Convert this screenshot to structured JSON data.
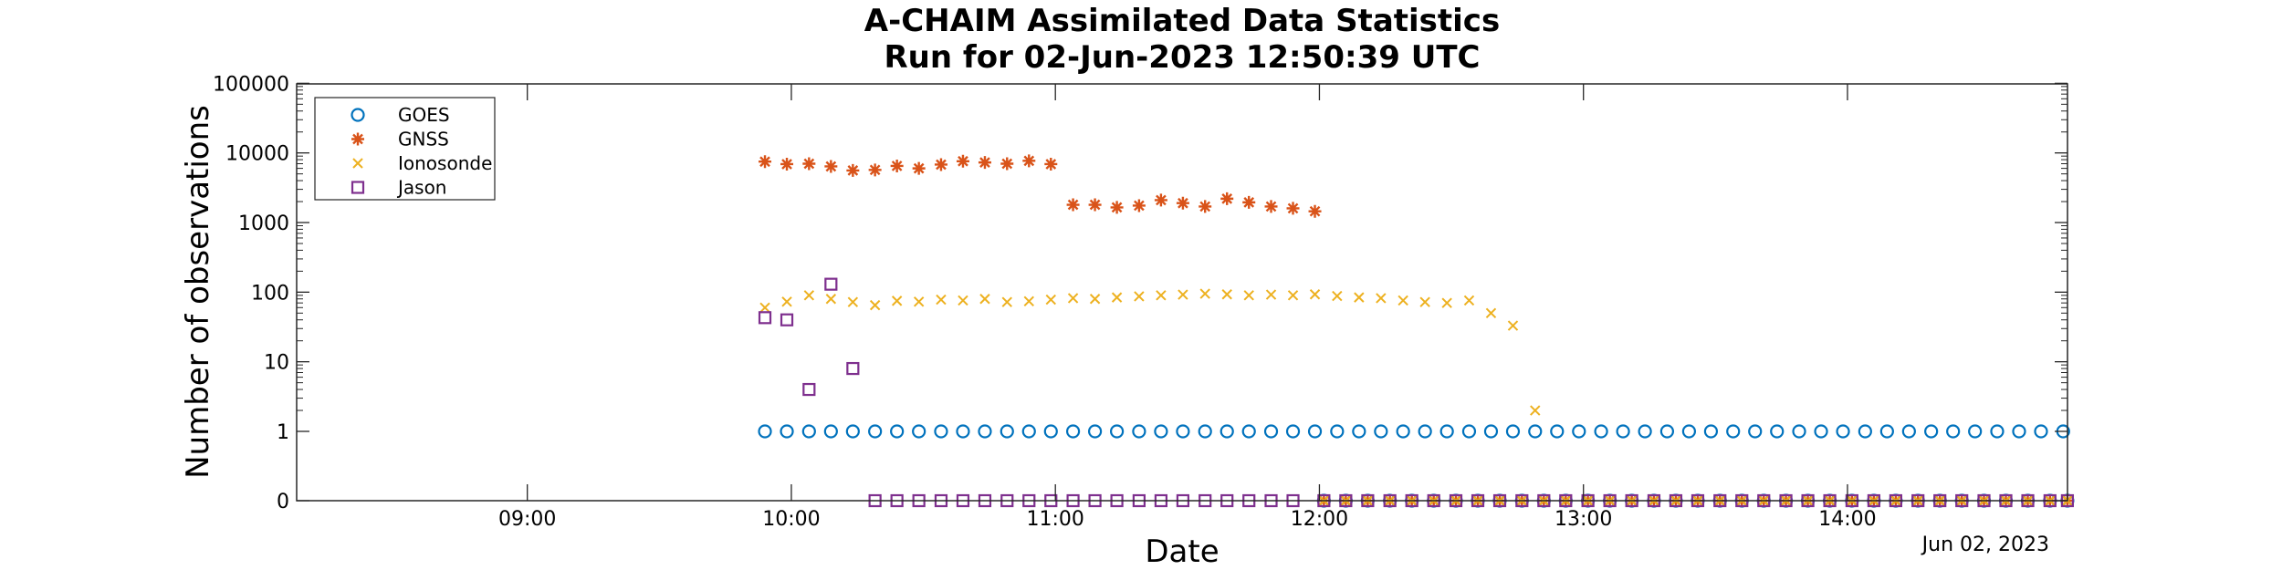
{
  "chart_data": {
    "type": "scatter",
    "title": "A-CHAIM Assimilated Data Statistics",
    "subtitle": "Run for 02-Jun-2023 12:50:39 UTC",
    "xlabel": "Date",
    "ylabel": "Number of observations",
    "date_annotation": "Jun 02, 2023",
    "y_scale": "log (0 shown at bottom)",
    "y_ticks": [
      "0",
      "1",
      "10",
      "100",
      "1000",
      "10000",
      "100000"
    ],
    "x_ticks": [
      "09:00",
      "10:00",
      "11:00",
      "12:00",
      "13:00",
      "14:00"
    ],
    "x_tick_hours": [
      9,
      10,
      11,
      12,
      13,
      14
    ],
    "xlim_hours": [
      8.1264,
      14.8333
    ],
    "grid": false,
    "legend_position": "top-left",
    "colors": {
      "GOES": "#0072BD",
      "GNSS": "#D95319",
      "Ionosonde": "#EDB120",
      "Jason": "#7E2F8E"
    },
    "series": [
      {
        "name": "GOES",
        "marker": "circle",
        "points": [
          [
            9.9,
            1
          ],
          [
            9.983,
            1
          ],
          [
            10.067,
            1
          ],
          [
            10.15,
            1
          ],
          [
            10.233,
            1
          ],
          [
            10.317,
            1
          ],
          [
            10.4,
            1
          ],
          [
            10.483,
            1
          ],
          [
            10.567,
            1
          ],
          [
            10.65,
            1
          ],
          [
            10.733,
            1
          ],
          [
            10.817,
            1
          ],
          [
            10.9,
            1
          ],
          [
            10.983,
            1
          ],
          [
            11.067,
            1
          ],
          [
            11.15,
            1
          ],
          [
            11.233,
            1
          ],
          [
            11.317,
            1
          ],
          [
            11.4,
            1
          ],
          [
            11.483,
            1
          ],
          [
            11.567,
            1
          ],
          [
            11.65,
            1
          ],
          [
            11.733,
            1
          ],
          [
            11.817,
            1
          ],
          [
            11.9,
            1
          ],
          [
            11.983,
            1
          ],
          [
            12.067,
            1
          ],
          [
            12.15,
            1
          ],
          [
            12.233,
            1
          ],
          [
            12.317,
            1
          ],
          [
            12.4,
            1
          ],
          [
            12.483,
            1
          ],
          [
            12.567,
            1
          ],
          [
            12.65,
            1
          ],
          [
            12.733,
            1
          ],
          [
            12.817,
            1
          ],
          [
            12.9,
            1
          ],
          [
            12.983,
            1
          ],
          [
            13.067,
            1
          ],
          [
            13.15,
            1
          ],
          [
            13.233,
            1
          ],
          [
            13.317,
            1
          ],
          [
            13.4,
            1
          ],
          [
            13.483,
            1
          ],
          [
            13.567,
            1
          ],
          [
            13.65,
            1
          ],
          [
            13.733,
            1
          ],
          [
            13.817,
            1
          ],
          [
            13.9,
            1
          ],
          [
            13.983,
            1
          ],
          [
            14.067,
            1
          ],
          [
            14.15,
            1
          ],
          [
            14.233,
            1
          ],
          [
            14.317,
            1
          ],
          [
            14.4,
            1
          ],
          [
            14.483,
            1
          ],
          [
            14.567,
            1
          ],
          [
            14.65,
            1
          ],
          [
            14.733,
            1
          ],
          [
            14.817,
            1
          ],
          [
            12.017,
            0
          ],
          [
            12.1,
            0
          ],
          [
            12.183,
            0
          ],
          [
            12.267,
            0
          ],
          [
            12.35,
            0
          ],
          [
            12.433,
            0
          ],
          [
            12.517,
            0
          ],
          [
            12.6,
            0
          ],
          [
            12.683,
            0
          ],
          [
            12.767,
            0
          ],
          [
            12.85,
            0
          ],
          [
            12.933,
            0
          ],
          [
            13.017,
            0
          ],
          [
            13.1,
            0
          ],
          [
            13.183,
            0
          ],
          [
            13.267,
            0
          ],
          [
            13.35,
            0
          ],
          [
            13.433,
            0
          ],
          [
            13.517,
            0
          ],
          [
            13.6,
            0
          ],
          [
            13.683,
            0
          ],
          [
            13.767,
            0
          ],
          [
            13.85,
            0
          ],
          [
            13.933,
            0
          ],
          [
            14.017,
            0
          ],
          [
            14.1,
            0
          ],
          [
            14.183,
            0
          ],
          [
            14.267,
            0
          ],
          [
            14.35,
            0
          ],
          [
            14.433,
            0
          ],
          [
            14.517,
            0
          ],
          [
            14.6,
            0
          ],
          [
            14.683,
            0
          ],
          [
            14.767,
            0
          ],
          [
            14.833,
            0
          ]
        ]
      },
      {
        "name": "GNSS",
        "marker": "star",
        "points": [
          [
            9.9,
            7500
          ],
          [
            9.983,
            6900
          ],
          [
            10.067,
            7000
          ],
          [
            10.15,
            6400
          ],
          [
            10.233,
            5600
          ],
          [
            10.317,
            5700
          ],
          [
            10.4,
            6500
          ],
          [
            10.483,
            6000
          ],
          [
            10.567,
            6800
          ],
          [
            10.65,
            7600
          ],
          [
            10.733,
            7300
          ],
          [
            10.817,
            7000
          ],
          [
            10.9,
            7700
          ],
          [
            10.983,
            6900
          ],
          [
            11.067,
            1800
          ],
          [
            11.15,
            1800
          ],
          [
            11.233,
            1650
          ],
          [
            11.317,
            1750
          ],
          [
            11.4,
            2100
          ],
          [
            11.483,
            1900
          ],
          [
            11.567,
            1700
          ],
          [
            11.65,
            2200
          ],
          [
            11.733,
            1950
          ],
          [
            11.817,
            1700
          ],
          [
            11.9,
            1600
          ],
          [
            11.983,
            1450
          ],
          [
            12.017,
            0
          ],
          [
            12.1,
            0
          ],
          [
            12.183,
            0
          ],
          [
            12.267,
            0
          ],
          [
            12.35,
            0
          ],
          [
            12.433,
            0
          ],
          [
            12.517,
            0
          ],
          [
            12.6,
            0
          ],
          [
            12.683,
            0
          ],
          [
            12.767,
            0
          ],
          [
            12.85,
            0
          ],
          [
            12.933,
            0
          ],
          [
            13.017,
            0
          ],
          [
            13.1,
            0
          ],
          [
            13.183,
            0
          ],
          [
            13.267,
            0
          ],
          [
            13.35,
            0
          ],
          [
            13.433,
            0
          ],
          [
            13.517,
            0
          ],
          [
            13.6,
            0
          ],
          [
            13.683,
            0
          ],
          [
            13.767,
            0
          ],
          [
            13.85,
            0
          ],
          [
            13.933,
            0
          ],
          [
            14.017,
            0
          ],
          [
            14.1,
            0
          ],
          [
            14.183,
            0
          ],
          [
            14.267,
            0
          ],
          [
            14.35,
            0
          ],
          [
            14.433,
            0
          ],
          [
            14.517,
            0
          ],
          [
            14.6,
            0
          ],
          [
            14.683,
            0
          ],
          [
            14.767,
            0
          ],
          [
            14.833,
            0
          ]
        ]
      },
      {
        "name": "Ionosonde",
        "marker": "x",
        "points": [
          [
            9.9,
            60
          ],
          [
            9.983,
            73
          ],
          [
            10.067,
            90
          ],
          [
            10.15,
            80
          ],
          [
            10.233,
            72
          ],
          [
            10.317,
            65
          ],
          [
            10.4,
            75
          ],
          [
            10.483,
            73
          ],
          [
            10.567,
            78
          ],
          [
            10.65,
            76
          ],
          [
            10.733,
            80
          ],
          [
            10.817,
            72
          ],
          [
            10.9,
            74
          ],
          [
            10.983,
            78
          ],
          [
            11.067,
            82
          ],
          [
            11.15,
            80
          ],
          [
            11.233,
            84
          ],
          [
            11.317,
            87
          ],
          [
            11.4,
            90
          ],
          [
            11.483,
            92
          ],
          [
            11.567,
            95
          ],
          [
            11.65,
            93
          ],
          [
            11.733,
            90
          ],
          [
            11.817,
            92
          ],
          [
            11.9,
            90
          ],
          [
            11.983,
            93
          ],
          [
            12.067,
            88
          ],
          [
            12.15,
            84
          ],
          [
            12.233,
            82
          ],
          [
            12.317,
            76
          ],
          [
            12.4,
            72
          ],
          [
            12.483,
            70
          ],
          [
            12.567,
            76
          ],
          [
            12.65,
            50
          ],
          [
            12.733,
            33
          ],
          [
            12.817,
            2
          ],
          [
            12.017,
            0
          ],
          [
            12.1,
            0
          ],
          [
            12.183,
            0
          ],
          [
            12.267,
            0
          ],
          [
            12.35,
            0
          ],
          [
            12.433,
            0
          ],
          [
            12.517,
            0
          ],
          [
            12.6,
            0
          ],
          [
            12.683,
            0
          ],
          [
            12.767,
            0
          ],
          [
            12.85,
            0
          ],
          [
            12.933,
            0
          ],
          [
            13.017,
            0
          ],
          [
            13.1,
            0
          ],
          [
            13.183,
            0
          ],
          [
            13.267,
            0
          ],
          [
            13.35,
            0
          ],
          [
            13.433,
            0
          ],
          [
            13.517,
            0
          ],
          [
            13.6,
            0
          ],
          [
            13.683,
            0
          ],
          [
            13.767,
            0
          ],
          [
            13.85,
            0
          ],
          [
            13.933,
            0
          ],
          [
            14.017,
            0
          ],
          [
            14.1,
            0
          ],
          [
            14.183,
            0
          ],
          [
            14.267,
            0
          ],
          [
            14.35,
            0
          ],
          [
            14.433,
            0
          ],
          [
            14.517,
            0
          ],
          [
            14.6,
            0
          ],
          [
            14.683,
            0
          ],
          [
            14.767,
            0
          ],
          [
            14.833,
            0
          ]
        ]
      },
      {
        "name": "Jason",
        "marker": "square",
        "points": [
          [
            9.9,
            43
          ],
          [
            9.983,
            40
          ],
          [
            10.067,
            4
          ],
          [
            10.15,
            130
          ],
          [
            10.233,
            8
          ],
          [
            10.317,
            0
          ],
          [
            10.4,
            0
          ],
          [
            10.483,
            0
          ],
          [
            10.567,
            0
          ],
          [
            10.65,
            0
          ],
          [
            10.733,
            0
          ],
          [
            10.817,
            0
          ],
          [
            10.9,
            0
          ],
          [
            10.983,
            0
          ],
          [
            11.067,
            0
          ],
          [
            11.15,
            0
          ],
          [
            11.233,
            0
          ],
          [
            11.317,
            0
          ],
          [
            11.4,
            0
          ],
          [
            11.483,
            0
          ],
          [
            11.567,
            0
          ],
          [
            11.65,
            0
          ],
          [
            11.733,
            0
          ],
          [
            11.817,
            0
          ],
          [
            11.9,
            0
          ],
          [
            12.017,
            0
          ],
          [
            12.1,
            0
          ],
          [
            12.183,
            0
          ],
          [
            12.267,
            0
          ],
          [
            12.35,
            0
          ],
          [
            12.433,
            0
          ],
          [
            12.517,
            0
          ],
          [
            12.6,
            0
          ],
          [
            12.683,
            0
          ],
          [
            12.767,
            0
          ],
          [
            12.85,
            0
          ],
          [
            12.933,
            0
          ],
          [
            13.017,
            0
          ],
          [
            13.1,
            0
          ],
          [
            13.183,
            0
          ],
          [
            13.267,
            0
          ],
          [
            13.35,
            0
          ],
          [
            13.433,
            0
          ],
          [
            13.517,
            0
          ],
          [
            13.6,
            0
          ],
          [
            13.683,
            0
          ],
          [
            13.767,
            0
          ],
          [
            13.85,
            0
          ],
          [
            13.933,
            0
          ],
          [
            14.017,
            0
          ],
          [
            14.1,
            0
          ],
          [
            14.183,
            0
          ],
          [
            14.267,
            0
          ],
          [
            14.35,
            0
          ],
          [
            14.433,
            0
          ],
          [
            14.517,
            0
          ],
          [
            14.6,
            0
          ],
          [
            14.683,
            0
          ],
          [
            14.767,
            0
          ],
          [
            14.833,
            0
          ]
        ]
      }
    ]
  }
}
